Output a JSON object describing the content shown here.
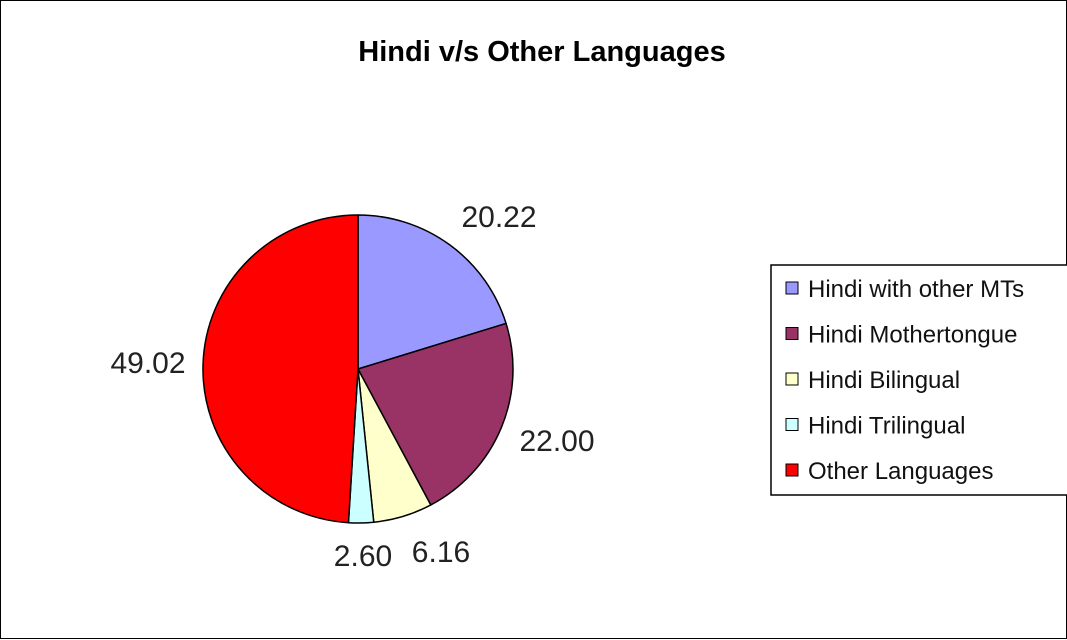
{
  "chart_data": {
    "type": "pie",
    "title": "Hindi v/s Other Languages",
    "legend_position": "right",
    "slices": [
      {
        "label": "Hindi with other MTs",
        "value": 20.22,
        "value_label": "20.22",
        "color": "#9999ff"
      },
      {
        "label": "Hindi Mothertongue",
        "value": 22.0,
        "value_label": "22.00",
        "color": "#993366"
      },
      {
        "label": "Hindi Bilingual",
        "value": 6.16,
        "value_label": "6.16",
        "color": "#ffffcc"
      },
      {
        "label": "Hindi Trilingual",
        "value": 2.6,
        "value_label": "2.60",
        "color": "#ccffff"
      },
      {
        "label": "Other Languages",
        "value": 49.02,
        "value_label": "49.02",
        "color": "#ff0000"
      }
    ]
  }
}
